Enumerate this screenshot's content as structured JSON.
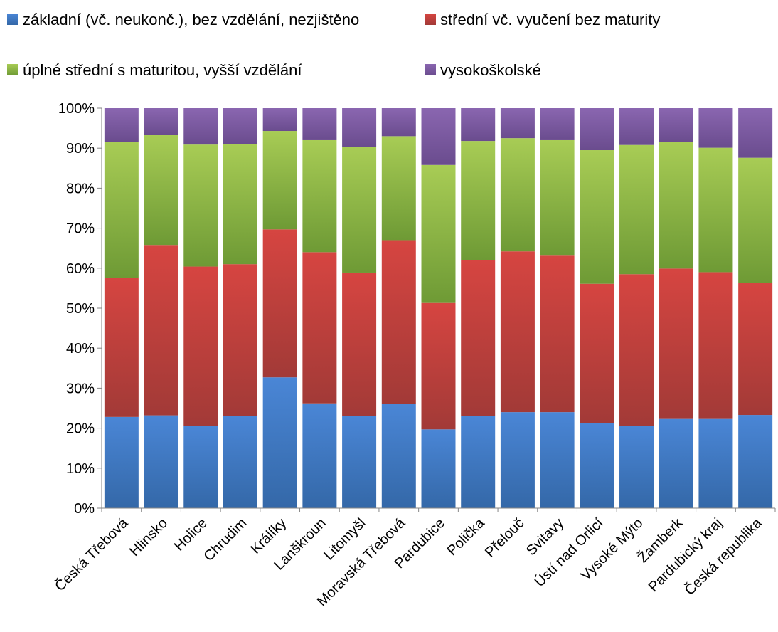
{
  "chart_data": {
    "type": "bar",
    "stacked": true,
    "percent_stacked": true,
    "title": "",
    "xlabel": "",
    "ylabel": "",
    "ylim": [
      0,
      100
    ],
    "y_ticks": [
      "0%",
      "10%",
      "20%",
      "30%",
      "40%",
      "50%",
      "60%",
      "70%",
      "80%",
      "90%",
      "100%"
    ],
    "grid": false,
    "legend_position": "top",
    "categories": [
      "Česká Třebová",
      "Hlinsko",
      "Holice",
      "Chrudim",
      "Králíky",
      "Lanškroun",
      "Litomyšl",
      "Moravská Třebová",
      "Pardubice",
      "Polička",
      "Přelouč",
      "Svitavy",
      "Ústí nad Orlicí",
      "Vysoké Mýto",
      "Žamberk",
      "Pardubický kraj",
      "Česká republika"
    ],
    "series": [
      {
        "name": "základní (vč. neukonč.), bez vzdělání, nezjištěno",
        "color": "#4A7EBB",
        "values": [
          22.8,
          23.2,
          20.5,
          23.0,
          32.7,
          26.2,
          23.0,
          26.0,
          19.7,
          23.0,
          24.0,
          24.0,
          21.3,
          20.5,
          22.3,
          22.3,
          23.3
        ]
      },
      {
        "name": "střední vč. vyučení bez maturity",
        "color": "#C0504D",
        "values": [
          34.8,
          42.6,
          39.9,
          38.0,
          37.0,
          37.8,
          35.9,
          41.0,
          31.6,
          39.0,
          40.2,
          39.3,
          34.8,
          38.0,
          37.6,
          36.7,
          33.0
        ]
      },
      {
        "name": "úplné střední s maturitou, vyšší vzdělání",
        "color": "#9BBB59",
        "values": [
          34.0,
          27.6,
          30.5,
          30.0,
          24.6,
          28.0,
          31.4,
          26.0,
          34.5,
          29.8,
          28.3,
          28.7,
          33.4,
          32.3,
          31.6,
          31.1,
          31.3
        ]
      },
      {
        "name": "vysokoškolské",
        "color": "#8064A2",
        "values": [
          8.4,
          6.6,
          9.1,
          9.0,
          5.7,
          8.0,
          9.7,
          7.0,
          14.2,
          8.2,
          7.5,
          8.0,
          10.5,
          9.2,
          8.5,
          9.9,
          12.4
        ]
      }
    ]
  }
}
